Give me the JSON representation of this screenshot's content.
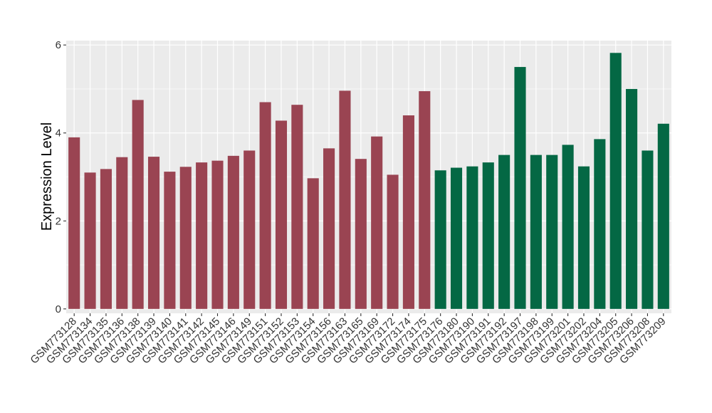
{
  "chart_data": {
    "type": "bar",
    "title": "",
    "xlabel": "",
    "ylabel": "Expression Level",
    "ylim": [
      -0.1,
      6.1
    ],
    "yticks": [
      0,
      2,
      4,
      6
    ],
    "grid": true,
    "legend": "none",
    "colors": {
      "group1": "#9a4452",
      "group2": "#046844",
      "panel": "#ebebeb",
      "grid": "#ffffff"
    },
    "categories": [
      "GSM773128",
      "GSM773134",
      "GSM773135",
      "GSM773136",
      "GSM773138",
      "GSM773139",
      "GSM773140",
      "GSM773141",
      "GSM773142",
      "GSM773145",
      "GSM773146",
      "GSM773149",
      "GSM773151",
      "GSM773152",
      "GSM773153",
      "GSM773154",
      "GSM773156",
      "GSM773163",
      "GSM773165",
      "GSM773169",
      "GSM773172",
      "GSM773174",
      "GSM773175",
      "GSM773176",
      "GSM773180",
      "GSM773190",
      "GSM773191",
      "GSM773192",
      "GSM773197",
      "GSM773198",
      "GSM773199",
      "GSM773201",
      "GSM773202",
      "GSM773204",
      "GSM773205",
      "GSM773206",
      "GSM773208",
      "GSM773209"
    ],
    "values": [
      3.9,
      3.1,
      3.18,
      3.45,
      4.75,
      3.46,
      3.12,
      3.23,
      3.33,
      3.37,
      3.48,
      3.6,
      4.7,
      4.28,
      4.64,
      2.97,
      3.65,
      4.96,
      3.41,
      3.92,
      3.05,
      4.4,
      4.95,
      3.15,
      3.21,
      3.24,
      3.33,
      3.5,
      5.5,
      3.5,
      3.5,
      3.73,
      3.24,
      3.86,
      5.82,
      5.0,
      3.6,
      4.21
    ],
    "groups": [
      1,
      1,
      1,
      1,
      1,
      1,
      1,
      1,
      1,
      1,
      1,
      1,
      1,
      1,
      1,
      1,
      1,
      1,
      1,
      1,
      1,
      1,
      1,
      2,
      2,
      2,
      2,
      2,
      2,
      2,
      2,
      2,
      2,
      2,
      2,
      2,
      2,
      2
    ]
  }
}
